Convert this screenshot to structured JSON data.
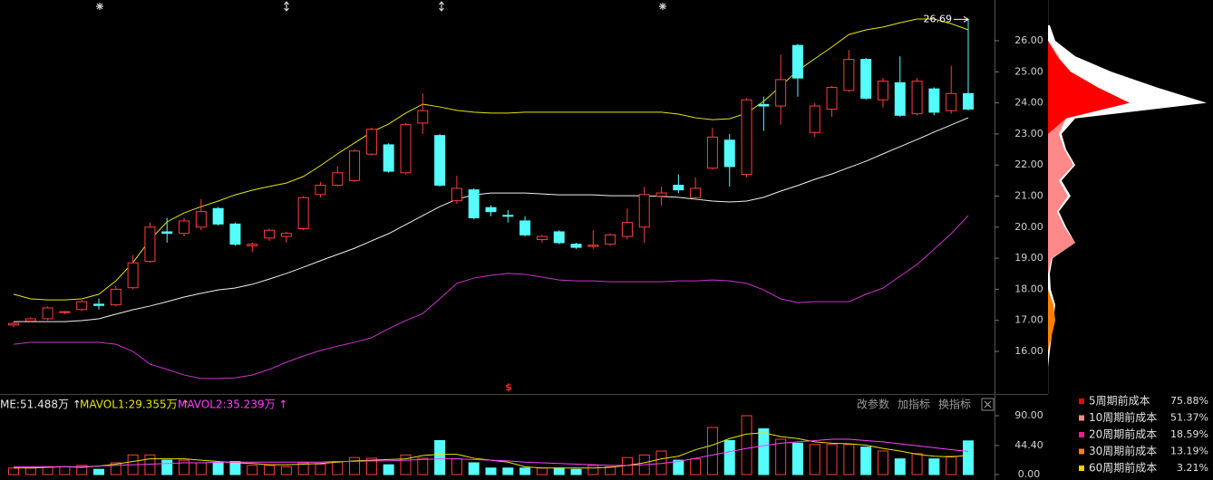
{
  "chart_data": [
    {
      "type": "candlestick",
      "open": [
        16.85,
        16.98,
        17.05,
        17.25,
        17.35,
        17.52,
        17.5,
        18.05,
        18.9,
        19.85,
        19.8,
        20.0,
        20.6,
        20.1,
        19.4,
        19.65,
        19.7,
        19.95,
        21.05,
        21.35,
        21.5,
        22.35,
        22.65,
        21.75,
        23.35,
        22.95,
        20.85,
        21.2,
        20.63,
        20.38,
        20.2,
        19.6,
        19.85,
        19.45,
        19.38,
        19.45,
        19.7,
        20.0,
        21.0,
        21.35,
        20.95,
        21.9,
        22.8,
        21.7,
        23.95,
        23.9,
        25.85,
        23.05,
        23.8,
        24.4,
        25.4,
        24.1,
        24.65,
        23.65,
        24.45,
        23.75,
        24.3
      ],
      "high": [
        16.95,
        17.1,
        17.45,
        17.3,
        17.65,
        17.7,
        18.1,
        19.1,
        20.15,
        20.3,
        20.3,
        20.9,
        20.65,
        20.15,
        19.5,
        19.95,
        19.85,
        21.0,
        21.45,
        21.95,
        22.5,
        23.2,
        22.7,
        23.35,
        24.3,
        23.0,
        21.65,
        21.25,
        20.7,
        20.55,
        20.35,
        19.75,
        19.9,
        19.5,
        19.9,
        19.8,
        20.6,
        21.3,
        21.3,
        21.7,
        21.6,
        23.2,
        23.0,
        24.15,
        24.2,
        25.55,
        25.9,
        24.0,
        24.55,
        25.7,
        25.45,
        24.8,
        25.5,
        24.8,
        24.5,
        25.2,
        26.69
      ],
      "low": [
        16.78,
        16.95,
        17.0,
        17.2,
        17.3,
        17.35,
        17.45,
        18.0,
        18.85,
        19.5,
        19.7,
        19.9,
        20.05,
        19.4,
        19.2,
        19.55,
        19.5,
        19.9,
        20.95,
        21.3,
        21.45,
        22.3,
        21.75,
        21.7,
        23.0,
        21.3,
        20.75,
        20.25,
        20.35,
        20.15,
        19.7,
        19.5,
        19.45,
        19.3,
        19.3,
        19.4,
        19.6,
        19.5,
        20.7,
        21.1,
        20.9,
        21.85,
        21.3,
        21.6,
        23.1,
        23.3,
        24.2,
        22.9,
        23.55,
        24.35,
        24.1,
        23.85,
        23.55,
        23.6,
        23.6,
        23.65,
        23.75
      ],
      "close": [
        16.9,
        17.05,
        17.4,
        17.28,
        17.6,
        17.48,
        18.0,
        18.85,
        20.0,
        19.8,
        20.2,
        20.5,
        20.1,
        19.45,
        19.45,
        19.9,
        19.8,
        20.95,
        21.35,
        21.75,
        22.45,
        23.15,
        21.8,
        23.3,
        23.75,
        21.35,
        21.25,
        20.3,
        20.5,
        20.35,
        19.75,
        19.7,
        19.5,
        19.35,
        19.42,
        19.75,
        20.15,
        21.05,
        21.1,
        21.2,
        21.25,
        22.9,
        21.95,
        24.1,
        23.9,
        24.75,
        24.8,
        23.9,
        24.5,
        25.4,
        24.15,
        24.7,
        23.6,
        24.7,
        23.7,
        24.3,
        23.8
      ],
      "up_color": "#ff3c3c",
      "down_color": "#54fcfc",
      "ylim": [
        14.63,
        27.312
      ],
      "yticks": [
        {
          "value": 16,
          "label": "16.00"
        },
        {
          "value": 17,
          "label": "17.00"
        },
        {
          "value": 18,
          "label": "18.00"
        },
        {
          "value": 19,
          "label": "19.00"
        },
        {
          "value": 20,
          "label": "20.00"
        },
        {
          "value": 21,
          "label": "21.00"
        },
        {
          "value": 22,
          "label": "22.00"
        },
        {
          "value": 23,
          "label": "23.00"
        },
        {
          "value": 24,
          "label": "24.00"
        },
        {
          "value": 25,
          "label": "25.00"
        },
        {
          "value": 26,
          "label": "26.00"
        }
      ],
      "lines": [
        {
          "color": "#e6e600",
          "values": [
            17.84,
            17.69,
            17.66,
            17.66,
            17.69,
            17.84,
            18.27,
            18.86,
            19.59,
            20.17,
            20.46,
            20.66,
            20.84,
            21.04,
            21.19,
            21.31,
            21.42,
            21.63,
            21.98,
            22.36,
            22.71,
            23.06,
            23.32,
            23.67,
            23.96,
            23.87,
            23.76,
            23.7,
            23.67,
            23.67,
            23.7,
            23.7,
            23.7,
            23.7,
            23.7,
            23.7,
            23.7,
            23.7,
            23.7,
            23.64,
            23.52,
            23.46,
            23.49,
            23.67,
            24.05,
            24.54,
            25.04,
            25.42,
            25.8,
            26.2,
            26.35,
            26.44,
            26.58,
            26.7,
            26.7,
            26.55,
            26.35
          ]
        },
        {
          "color": "#f0f0f0",
          "values": [
            16.96,
            16.96,
            16.96,
            16.96,
            16.99,
            17.05,
            17.2,
            17.34,
            17.46,
            17.6,
            17.75,
            17.87,
            17.98,
            18.04,
            18.16,
            18.33,
            18.51,
            18.71,
            18.92,
            19.12,
            19.32,
            19.56,
            19.79,
            20.08,
            20.37,
            20.66,
            20.9,
            21.04,
            21.1,
            21.1,
            21.1,
            21.07,
            21.04,
            21.04,
            21.04,
            21.01,
            21.01,
            21.01,
            20.99,
            20.96,
            20.9,
            20.84,
            20.81,
            20.84,
            20.96,
            21.16,
            21.34,
            21.54,
            21.71,
            21.92,
            22.12,
            22.36,
            22.59,
            22.82,
            23.06,
            23.29,
            23.52
          ]
        },
        {
          "color": "#cc33cc",
          "values": [
            16.23,
            16.29,
            16.29,
            16.29,
            16.29,
            16.29,
            16.23,
            16.0,
            15.59,
            15.42,
            15.24,
            15.13,
            15.13,
            15.15,
            15.24,
            15.42,
            15.65,
            15.85,
            16.03,
            16.17,
            16.29,
            16.44,
            16.73,
            16.99,
            17.22,
            17.69,
            18.19,
            18.36,
            18.45,
            18.51,
            18.48,
            18.39,
            18.3,
            18.27,
            18.27,
            18.24,
            18.24,
            18.24,
            18.24,
            18.27,
            18.27,
            18.3,
            18.27,
            18.19,
            17.98,
            17.69,
            17.57,
            17.6,
            17.6,
            17.6,
            17.84,
            18.04,
            18.42,
            18.8,
            19.29,
            19.79,
            20.37
          ]
        }
      ],
      "high_annotation": 26.69,
      "signal_marker": "$"
    },
    {
      "type": "bar",
      "values": [
        10,
        10,
        12,
        12,
        14,
        8,
        18,
        30,
        30,
        22,
        22,
        18,
        18,
        20,
        14,
        14,
        12,
        18,
        16,
        20,
        26,
        25,
        15,
        30,
        25,
        52,
        24,
        18,
        10,
        10,
        10,
        10,
        10,
        8,
        14,
        12,
        26,
        30,
        36,
        22,
        24,
        72,
        52,
        90,
        70,
        54,
        48,
        46,
        46,
        46,
        42,
        36,
        24,
        32,
        24,
        28,
        51.488
      ],
      "value_label": "ME:51.488万 ↑",
      "lines": [
        {
          "name": "MAVOL1:29.355万 ↑",
          "color": "#e6e600",
          "values": [
            10,
            10,
            11,
            12,
            11,
            13,
            16,
            20,
            24,
            24,
            24,
            22,
            20,
            18,
            17,
            15,
            15,
            16,
            17,
            19,
            21,
            22,
            23,
            24,
            29,
            31,
            31,
            25,
            22,
            19,
            12,
            10,
            10,
            10,
            10,
            11,
            14,
            18,
            24,
            28,
            38,
            45,
            55,
            62,
            64,
            58,
            55,
            50,
            48,
            47,
            45,
            40,
            36,
            31,
            28,
            27,
            29.355
          ]
        },
        {
          "name": "MAVOL2:35.239万 ↑",
          "color": "#ff40ff",
          "values": [
            12,
            12,
            12,
            12,
            12,
            13,
            14,
            15,
            16,
            17,
            18,
            18,
            19,
            19,
            19,
            19,
            19,
            19,
            19,
            20,
            20,
            21,
            21,
            22,
            23,
            24,
            24,
            23,
            22,
            21,
            19,
            18,
            17,
            16,
            15,
            14,
            14,
            15,
            17,
            20,
            25,
            30,
            35,
            40,
            44,
            48,
            50,
            52,
            54,
            54,
            52,
            50,
            47,
            44,
            41,
            38,
            35.239
          ]
        }
      ],
      "ylim": [
        0,
        116.3
      ],
      "yticks": [
        {
          "value": 0,
          "label": "0.00"
        },
        {
          "value": 44.4,
          "label": "44.40"
        },
        {
          "value": 90,
          "label": "90.00"
        }
      ],
      "buttons": [
        "改参数",
        "加指标",
        "换指标"
      ]
    },
    {
      "type": "profile",
      "prices": [
        26.5,
        26,
        25.5,
        25,
        24.5,
        24,
        23.5,
        23,
        22.5,
        22,
        21.5,
        21,
        20.5,
        20,
        19.5,
        19,
        18.5,
        18,
        17.5,
        17,
        16.5,
        16,
        15.5
      ],
      "xlim": [
        0,
        180
      ],
      "base": {
        "color": "#ffffff",
        "values": [
          2,
          8,
          30,
          70,
          120,
          175,
          30,
          15,
          20,
          30,
          15,
          25,
          12,
          20,
          30,
          5,
          2,
          3,
          8,
          6,
          4,
          2,
          0
        ]
      },
      "series": [
        {
          "name": "5周期前成本",
          "color": "#ff0000",
          "values": [
            0,
            0,
            10,
            25,
            55,
            90,
            20,
            0,
            0,
            0,
            0,
            0,
            0,
            0,
            0,
            0,
            0,
            0,
            0,
            0,
            0,
            0,
            0
          ],
          "share": 75.88,
          "share_label": "75.88%"
        },
        {
          "name": "10周期前成本",
          "color": "#ff8888",
          "values": [
            0,
            0,
            12,
            15,
            20,
            35,
            20,
            12,
            18,
            28,
            12,
            22,
            10,
            18,
            30,
            4,
            0,
            0,
            0,
            0,
            0,
            0,
            0
          ],
          "share": 51.37,
          "share_label": "51.37%"
        },
        {
          "name": "20周期前成本",
          "color": "#ff1a8c",
          "values": [
            0,
            0,
            0,
            0,
            0,
            15,
            10,
            5,
            5,
            8,
            5,
            8,
            5,
            10,
            25,
            3,
            0,
            0,
            0,
            0,
            0,
            0,
            0
          ],
          "share": 18.59,
          "share_label": "18.59%"
        },
        {
          "name": "30周期前成本",
          "color": "#ff8000",
          "values": [
            0,
            0,
            0,
            0,
            0,
            0,
            0,
            6,
            8,
            10,
            6,
            6,
            5,
            8,
            10,
            3,
            0,
            0,
            6,
            8,
            4,
            0,
            0
          ],
          "share": 13.19,
          "share_label": "13.19%"
        },
        {
          "name": "60周期前成本",
          "color": "#ffcc00",
          "values": [
            0,
            0,
            0,
            0,
            0,
            5,
            0,
            0,
            0,
            0,
            0,
            0,
            0,
            0,
            0,
            0,
            0,
            0,
            4,
            6,
            3,
            0,
            0
          ],
          "share": 3.21,
          "share_label": "3.21%"
        }
      ]
    }
  ]
}
